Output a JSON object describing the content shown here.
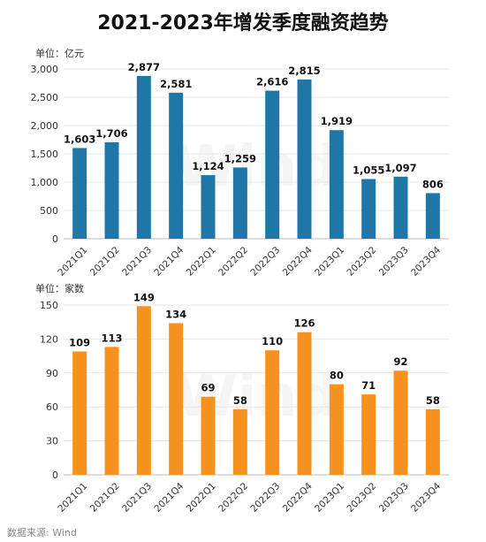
{
  "title": "2021-2023年增发季度融资趋势",
  "source": "数据来源: Wind",
  "watermark": "Wind",
  "chart_data": [
    {
      "type": "bar",
      "unit_label": "单位：亿元",
      "categories": [
        "2021Q1",
        "2021Q2",
        "2021Q3",
        "2021Q4",
        "2022Q1",
        "2022Q2",
        "2022Q3",
        "2022Q4",
        "2023Q1",
        "2023Q2",
        "2023Q3",
        "2023Q4"
      ],
      "values": [
        1603,
        1706,
        2877,
        2581,
        1124,
        1259,
        2616,
        2815,
        1919,
        1055,
        1097,
        806
      ],
      "value_labels": [
        "1,603",
        "1,706",
        "2,877",
        "2,581",
        "1,124",
        "1,259",
        "2,616",
        "2,815",
        "1,919",
        "1,055",
        "1,097",
        "806"
      ],
      "ylim": [
        0,
        3000
      ],
      "yticks": [
        0,
        500,
        1000,
        1500,
        2000,
        2500,
        3000
      ],
      "ytick_labels": [
        "0",
        "500",
        "1,000",
        "1,500",
        "2,000",
        "2,500",
        "3,000"
      ],
      "color": "#1f77a8",
      "grid": true
    },
    {
      "type": "bar",
      "unit_label": "单位：家数",
      "categories": [
        "2021Q1",
        "2021Q2",
        "2021Q3",
        "2021Q4",
        "2022Q1",
        "2022Q2",
        "2022Q3",
        "2022Q4",
        "2023Q1",
        "2023Q2",
        "2023Q3",
        "2023Q4"
      ],
      "values": [
        109,
        113,
        149,
        134,
        69,
        58,
        110,
        126,
        80,
        71,
        92,
        58
      ],
      "value_labels": [
        "109",
        "113",
        "149",
        "134",
        "69",
        "58",
        "110",
        "126",
        "80",
        "71",
        "92",
        "58"
      ],
      "ylim": [
        0,
        150
      ],
      "yticks": [
        0,
        30,
        60,
        90,
        120,
        150
      ],
      "ytick_labels": [
        "0",
        "30",
        "60",
        "90",
        "120",
        "150"
      ],
      "color": "#f7921e",
      "grid": true
    }
  ]
}
